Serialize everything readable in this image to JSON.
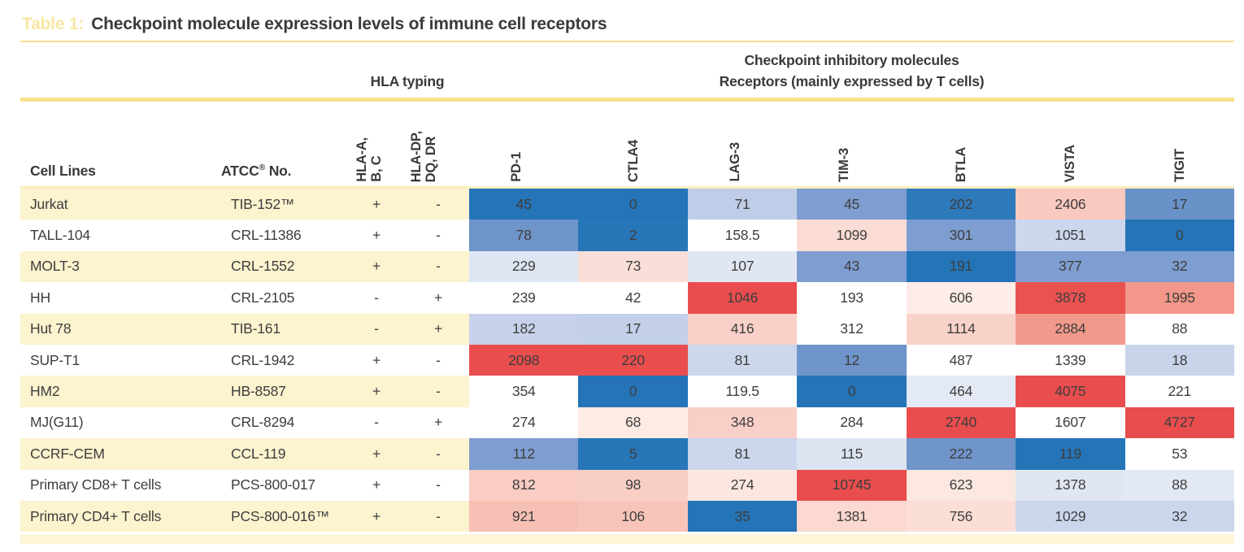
{
  "title": {
    "label": "Table 1:",
    "text": "Checkpoint molecule expression levels of immune cell receptors"
  },
  "column_groups": {
    "hla": "HLA typing",
    "checkpoint_line1": "Checkpoint inhibitory molecules",
    "checkpoint_line2": "Receptors (mainly expressed by T cells)"
  },
  "headers": {
    "cell_lines": "Cell Lines",
    "atcc_name": "ATCC",
    "atcc_reg": "®",
    "atcc_no": " No.",
    "rotated": [
      "HLA-A,\nB, C",
      "HLA-DP,\nDQ, DR",
      "PD-1",
      "CTLA4",
      "LAG-3",
      "TIM-3",
      "BTLA",
      "VISTA",
      "TIGIT"
    ]
  },
  "colors": {
    "accent_rule": "#f9e18c",
    "thin_rule": "#f6e195",
    "mid_rule": "#faeebc",
    "row_stripe": "#fcf3cf",
    "bottom_band": "#fdf5d8",
    "title_label": "#f8e7a3",
    "text": "#3e3e3e",
    "scale_low": "#2474b7",
    "scale_mid": "#ffffff",
    "scale_high": "#e94d4e"
  },
  "chart_data": {
    "type": "heatmap",
    "title": "Checkpoint molecule expression levels of immune cell receptors",
    "value_columns": [
      "PD-1",
      "CTLA4",
      "LAG-3",
      "TIM-3",
      "BTLA",
      "VISTA",
      "TIGIT"
    ],
    "color_scale": {
      "low": "#2474b7",
      "mid": "#ffffff",
      "high": "#e94d4e",
      "note": "per-column 3-color scale: low=blue, median=white, high=red"
    },
    "rows": [
      {
        "cell_line": "Jurkat",
        "atcc_no": "TIB-152™",
        "hla_abc": "+",
        "hla_dpdqdr": "-",
        "values": [
          45,
          0,
          71,
          45,
          202,
          2406,
          17
        ],
        "cell_colors": [
          "#2474b7",
          "#2474b7",
          "#c0cde8",
          "#7e9dd1",
          "#2e79ba",
          "#f8c9bf",
          "#6992c8"
        ]
      },
      {
        "cell_line": "TALL-104",
        "atcc_no": "CRL-11386",
        "hla_abc": "+",
        "hla_dpdqdr": "-",
        "values": [
          78,
          2,
          158.5,
          1099,
          301,
          1051,
          0
        ],
        "cell_colors": [
          "#6e94c9",
          "#2776b8",
          "#ffffff",
          "#fbdcd4",
          "#7e9dd1",
          "#ccd7ed",
          "#2474b7"
        ]
      },
      {
        "cell_line": "MOLT-3",
        "atcc_no": "CRL-1552",
        "hla_abc": "+",
        "hla_dpdqdr": "-",
        "values": [
          229,
          73,
          107,
          43,
          191,
          377,
          32
        ],
        "cell_colors": [
          "#dfe6f3",
          "#fbded7",
          "#e0e7f3",
          "#7e9dd1",
          "#2474b7",
          "#7e9dd1",
          "#7e9dd1"
        ]
      },
      {
        "cell_line": "HH",
        "atcc_no": "CRL-2105",
        "hla_abc": "-",
        "hla_dpdqdr": "+",
        "values": [
          239,
          42,
          1046,
          193,
          606,
          3878,
          1995
        ],
        "cell_colors": [
          "#ffffff",
          "#ffffff",
          "#e94d4e",
          "#ffffff",
          "#fdece7",
          "#ea5250",
          "#f29789"
        ]
      },
      {
        "cell_line": "Hut 78",
        "atcc_no": "TIB-161",
        "hla_abc": "-",
        "hla_dpdqdr": "+",
        "values": [
          182,
          17,
          416,
          312,
          1114,
          2884,
          88
        ],
        "cell_colors": [
          "#c7d2ea",
          "#c4d0e9",
          "#f9d1c8",
          "#ffffff",
          "#f9d2c9",
          "#f19a8c",
          "#ffffff"
        ]
      },
      {
        "cell_line": "SUP-T1",
        "atcc_no": "CRL-1942",
        "hla_abc": "+",
        "hla_dpdqdr": "-",
        "values": [
          2098,
          220,
          81,
          12,
          487,
          1339,
          18
        ],
        "cell_colors": [
          "#e94d4e",
          "#e94d4e",
          "#ccd7ec",
          "#6e94c9",
          "#ffffff",
          "#ffffff",
          "#c9d4eb"
        ]
      },
      {
        "cell_line": "HM2",
        "atcc_no": "HB-8587",
        "hla_abc": "+",
        "hla_dpdqdr": "-",
        "values": [
          354,
          0,
          119.5,
          0,
          464,
          4075,
          221
        ],
        "cell_colors": [
          "#ffffff",
          "#2474b7",
          "#ffffff",
          "#2474b7",
          "#e4eaf5",
          "#e94d4e",
          "#ffffff"
        ]
      },
      {
        "cell_line": "MJ(G11)",
        "atcc_no": "CRL-8294",
        "hla_abc": "-",
        "hla_dpdqdr": "+",
        "values": [
          274,
          68,
          348,
          284,
          2740,
          1607,
          4727
        ],
        "cell_colors": [
          "#ffffff",
          "#fdebe4",
          "#f8d0c7",
          "#ffffff",
          "#e94d4e",
          "#ffffff",
          "#e94d4e"
        ]
      },
      {
        "cell_line": "CCRF-CEM",
        "atcc_no": "CCL-119",
        "hla_abc": "+",
        "hla_dpdqdr": "-",
        "values": [
          112,
          5,
          81,
          115,
          222,
          119,
          53
        ],
        "cell_colors": [
          "#7e9dd1",
          "#2776b8",
          "#ccd6ec",
          "#dde4f1",
          "#6f95ca",
          "#2474b7",
          "#ffffff"
        ]
      },
      {
        "cell_line": "Primary CD8+ T cells",
        "atcc_no": "PCS-800-017",
        "hla_abc": "+",
        "hla_dpdqdr": "-",
        "values": [
          812,
          98,
          274,
          10745,
          623,
          1378,
          88
        ],
        "cell_colors": [
          "#f9cdc3",
          "#f9cfc5",
          "#fce7e0",
          "#e94d4e",
          "#fce8e1",
          "#e0e7f3",
          "#e2e8f4"
        ]
      },
      {
        "cell_line": "Primary CD4+ T cells",
        "atcc_no": "PCS-800-016™",
        "hla_abc": "+",
        "hla_dpdqdr": "-",
        "values": [
          921,
          106,
          35,
          1381,
          756,
          1029,
          32
        ],
        "cell_colors": [
          "#f7c0b5",
          "#f8c4ba",
          "#2474b7",
          "#fbd8d0",
          "#fbded6",
          "#ccd6eb",
          "#ccd6eb"
        ]
      }
    ]
  }
}
